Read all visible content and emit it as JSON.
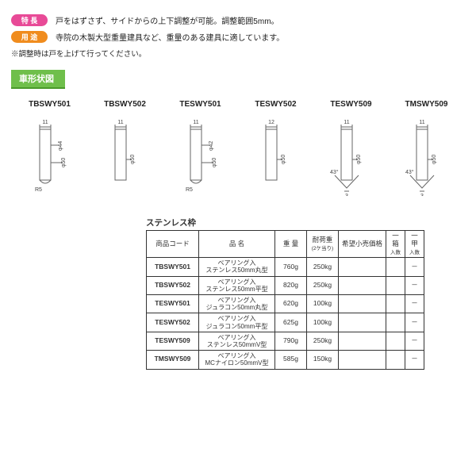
{
  "features": {
    "label1": "特 長",
    "text1": "戸をはずさず、サイドからの上下調整が可能。調整範囲5mm。",
    "label2": "用 途",
    "text2": "寺院の木製大型重量建具など、重量のある建具に適しています。"
  },
  "note": "※調整時は戸を上げて行ってください。",
  "sectionTab": "車形状図",
  "diagrams": [
    {
      "code": "TBSWY501",
      "width": "11",
      "dia1": "φ44",
      "dia2": "φ50",
      "shape": "round",
      "r": "R5"
    },
    {
      "code": "TBSWY502",
      "width": "11",
      "dia2": "φ50",
      "shape": "flat"
    },
    {
      "code": "TESWY501",
      "width": "11",
      "dia1": "φ42",
      "dia2": "φ50",
      "shape": "round",
      "r": "R5"
    },
    {
      "code": "TESWY502",
      "width": "12",
      "dia2": "φ50",
      "shape": "flat"
    },
    {
      "code": "TESWY509",
      "width": "11",
      "dia2": "φ50",
      "shape": "v",
      "angle": "43°",
      "base": "3"
    },
    {
      "code": "TMSWY509",
      "width": "11",
      "dia2": "φ50",
      "shape": "v",
      "angle": "43°",
      "base": "3"
    }
  ],
  "tableTitle": "ステンレス枠",
  "table": {
    "headers": {
      "code": "商品コード",
      "name": "品 名",
      "weight": "重 量",
      "load": "耐荷重",
      "loadSub": "(2ケ当り)",
      "price": "希望小売価格",
      "perBox": "一箱",
      "perBoxSub": "入数",
      "perCase": "一甲",
      "perCaseSub": "入数"
    },
    "rows": [
      {
        "code": "TBSWY501",
        "name1": "ベアリング入",
        "name2": "ステンレス50mm丸型",
        "weight": "760g",
        "load": "250kg",
        "price": "",
        "box": "",
        "case": "－"
      },
      {
        "code": "TBSWY502",
        "name1": "ベアリング入",
        "name2": "ステンレス50mm平型",
        "weight": "820g",
        "load": "250kg",
        "price": "",
        "box": "",
        "case": "－"
      },
      {
        "code": "TESWY501",
        "name1": "ベアリング入",
        "name2": "ジュラコン50mm丸型",
        "weight": "620g",
        "load": "100kg",
        "price": "",
        "box": "",
        "case": "－"
      },
      {
        "code": "TESWY502",
        "name1": "ベアリング入",
        "name2": "ジュラコン50mm平型",
        "weight": "625g",
        "load": "100kg",
        "price": "",
        "box": "",
        "case": "－"
      },
      {
        "code": "TESWY509",
        "name1": "ベアリング入",
        "name2": "ステンレス50mmV型",
        "weight": "790g",
        "load": "250kg",
        "price": "",
        "box": "",
        "case": "－"
      },
      {
        "code": "TMSWY509",
        "name1": "ベアリング入",
        "name2": "MCナイロン50mmV型",
        "weight": "585g",
        "load": "150kg",
        "price": "",
        "box": "",
        "case": "－"
      }
    ]
  },
  "colors": {
    "pink": "#e84a97",
    "orange": "#f08c1e",
    "green": "#6fbf4b",
    "line": "#666"
  }
}
